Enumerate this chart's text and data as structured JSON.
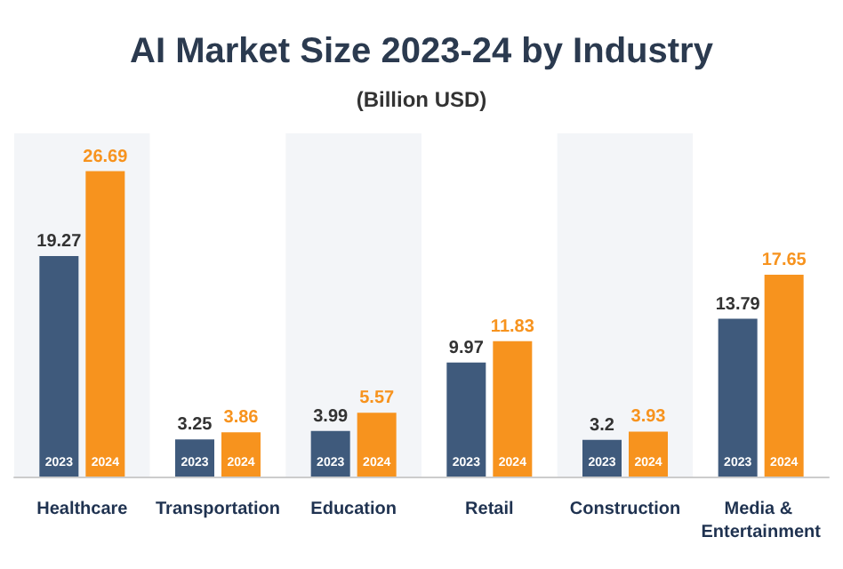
{
  "chart_data": {
    "type": "bar",
    "title": "AI Market Size 2023-24 by Industry",
    "subtitle": "(Billion USD)",
    "categories": [
      "Healthcare",
      "Transportation",
      "Education",
      "Retail",
      "Construction",
      "Media & Entertainment"
    ],
    "series": [
      {
        "name": "2023",
        "color": "#3f5a7c",
        "values": [
          19.27,
          3.25,
          3.99,
          9.97,
          3.2,
          13.79
        ]
      },
      {
        "name": "2024",
        "color": "#f7931e",
        "values": [
          26.69,
          3.86,
          5.57,
          11.83,
          3.93,
          17.65
        ]
      }
    ],
    "data_labels": true,
    "legend": false
  }
}
